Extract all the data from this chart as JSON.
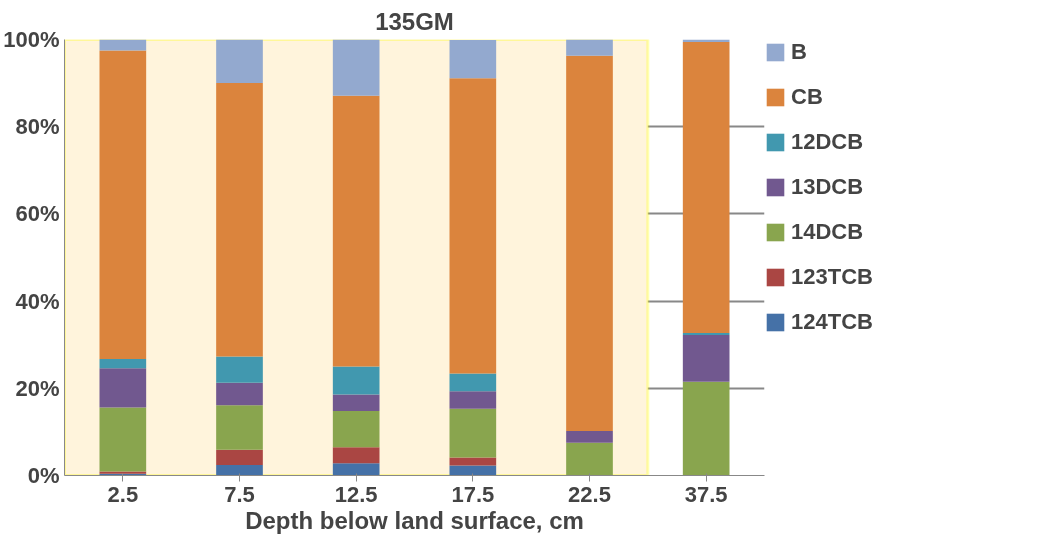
{
  "chart_data": {
    "type": "bar",
    "stacked": true,
    "title": "135GM",
    "xlabel": "Depth below land surface, cm",
    "categories": [
      "2.5",
      "7.5",
      "12.5",
      "17.5",
      "22.5",
      "37.5"
    ],
    "series": [
      {
        "name": "124TCB",
        "color": "#4571a7",
        "values": [
          0.4,
          2.4,
          2.8,
          2.3,
          0,
          0
        ]
      },
      {
        "name": "123TCB",
        "color": "#aa4643",
        "values": [
          0.5,
          3.5,
          3.7,
          1.8,
          0,
          0
        ]
      },
      {
        "name": "14DCB",
        "color": "#89a54e",
        "values": [
          14.7,
          10.2,
          8.3,
          11.2,
          7.5,
          21.5
        ]
      },
      {
        "name": "13DCB",
        "color": "#71588f",
        "values": [
          9.0,
          5.2,
          3.8,
          4.0,
          2.7,
          10.7
        ]
      },
      {
        "name": "12DCB",
        "color": "#4198af",
        "values": [
          2.1,
          6.0,
          6.4,
          4.1,
          0,
          0.5
        ]
      },
      {
        "name": "CB",
        "color": "#db843d",
        "values": [
          70.8,
          62.7,
          62.1,
          67.7,
          86.1,
          66.7
        ]
      },
      {
        "name": "B",
        "color": "#93a9cf",
        "values": [
          2.5,
          10.0,
          13.0,
          8.8,
          3.7,
          0.6
        ]
      }
    ],
    "ylim": [
      0,
      100
    ],
    "yticks": [
      {
        "value": 0,
        "label": "0%"
      },
      {
        "value": 20,
        "label": "20%"
      },
      {
        "value": 40,
        "label": "40%"
      },
      {
        "value": 60,
        "label": "60%"
      },
      {
        "value": 80,
        "label": "80%"
      },
      {
        "value": 100,
        "label": "100%"
      }
    ],
    "grid": "y",
    "legend": "right",
    "bands": [
      {
        "axis": "x",
        "from": "2.5",
        "to": "22.5",
        "color": "#fff4dc"
      }
    ]
  }
}
